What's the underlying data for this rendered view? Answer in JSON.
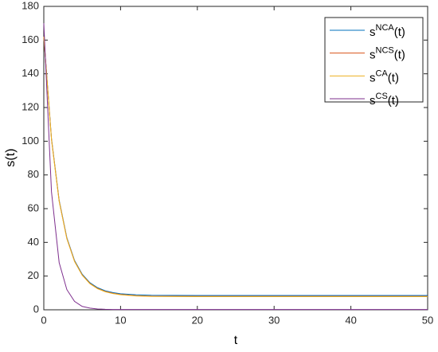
{
  "chart_data": {
    "type": "line",
    "xlabel": "t",
    "ylabel": "s(t)",
    "x": [
      0,
      1,
      2,
      3,
      4,
      5,
      6,
      7,
      8,
      9,
      10,
      12,
      14,
      20,
      30,
      40,
      50
    ],
    "series": [
      {
        "name": "sNCA(t)",
        "color": "#0072bd",
        "values": [
          162,
          101.6,
          65,
          42.8,
          29.3,
          21.1,
          16.1,
          13.1,
          11.3,
          10.2,
          9.5,
          8.9,
          8.6,
          8.5,
          8.5,
          8.5,
          8.5
        ]
      },
      {
        "name": "sNCS(t)",
        "color": "#d95319",
        "values": [
          162,
          101.2,
          64.6,
          42.4,
          28.9,
          20.7,
          15.7,
          12.7,
          10.9,
          9.8,
          9.1,
          8.4,
          8.1,
          8,
          8,
          8,
          8
        ]
      },
      {
        "name": "sCA(t)",
        "color": "#edb120",
        "values": [
          162,
          101,
          64.4,
          42.2,
          28.7,
          20.5,
          15.5,
          12.5,
          10.7,
          9.6,
          8.9,
          8.2,
          7.9,
          7.8,
          7.8,
          7.8,
          7.8
        ]
      },
      {
        "name": "sCS(t)",
        "color": "#7e2f8e",
        "values": [
          170,
          70,
          28,
          12,
          5,
          2,
          1,
          0.5,
          0.3,
          0.2,
          0.2,
          0.2,
          0.2,
          0.2,
          0.2,
          0.2,
          0.2
        ]
      }
    ],
    "xlim": [
      0,
      50
    ],
    "xticks": [
      0,
      10,
      20,
      30,
      40,
      50
    ],
    "ylim": [
      0,
      180
    ],
    "yticks": [
      0,
      20,
      40,
      60,
      80,
      100,
      120,
      140,
      160,
      180
    ],
    "legend": "upper right"
  }
}
